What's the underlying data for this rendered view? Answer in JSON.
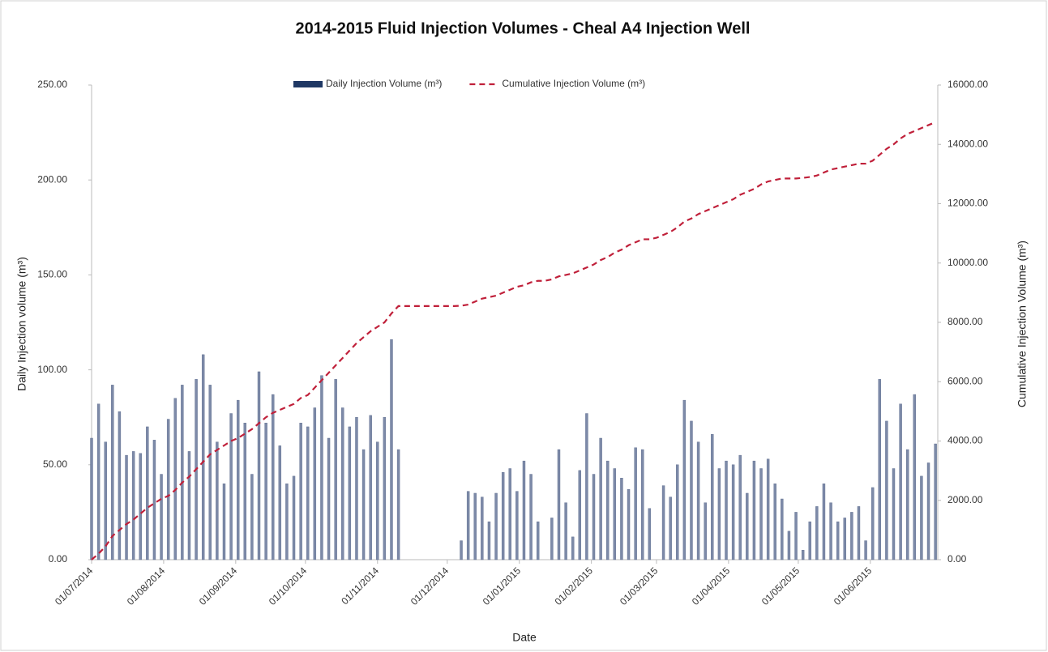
{
  "chart_data": {
    "type": "bar-line",
    "title": "2014-2015 Fluid Injection Volumes - Cheal A4 Injection Well",
    "x_label": "Date",
    "y_label": "Daily Injection volume (m³)",
    "y2_label": "Cumulative Injection Volume (m³)",
    "legend": "top",
    "grid": false,
    "x": [
      "01/07/2014",
      "04/07/2014",
      "07/07/2014",
      "10/07/2014",
      "13/07/2014",
      "16/07/2014",
      "19/07/2014",
      "22/07/2014",
      "25/07/2014",
      "28/07/2014",
      "31/07/2014",
      "03/08/2014",
      "06/08/2014",
      "09/08/2014",
      "12/08/2014",
      "15/08/2014",
      "18/08/2014",
      "21/08/2014",
      "24/08/2014",
      "27/08/2014",
      "30/08/2014",
      "02/09/2014",
      "05/09/2014",
      "08/09/2014",
      "11/09/2014",
      "14/09/2014",
      "17/09/2014",
      "20/09/2014",
      "23/09/2014",
      "26/09/2014",
      "29/09/2014",
      "02/10/2014",
      "05/10/2014",
      "08/10/2014",
      "11/10/2014",
      "14/10/2014",
      "17/10/2014",
      "20/10/2014",
      "23/10/2014",
      "26/10/2014",
      "29/10/2014",
      "01/11/2014",
      "04/11/2014",
      "07/11/2014",
      "10/11/2014",
      "13/11/2014",
      "16/11/2014",
      "19/11/2014",
      "22/11/2014",
      "25/11/2014",
      "28/11/2014",
      "01/12/2014",
      "04/12/2014",
      "07/12/2014",
      "10/12/2014",
      "13/12/2014",
      "16/12/2014",
      "19/12/2014",
      "22/12/2014",
      "25/12/2014",
      "28/12/2014",
      "31/12/2014",
      "03/01/2015",
      "06/01/2015",
      "09/01/2015",
      "12/01/2015",
      "15/01/2015",
      "18/01/2015",
      "21/01/2015",
      "24/01/2015",
      "27/01/2015",
      "30/01/2015",
      "02/02/2015",
      "05/02/2015",
      "08/02/2015",
      "11/02/2015",
      "14/02/2015",
      "17/02/2015",
      "20/02/2015",
      "23/02/2015",
      "26/02/2015",
      "01/03/2015",
      "04/03/2015",
      "07/03/2015",
      "10/03/2015",
      "13/03/2015",
      "16/03/2015",
      "19/03/2015",
      "22/03/2015",
      "25/03/2015",
      "28/03/2015",
      "31/03/2015",
      "03/04/2015",
      "06/04/2015",
      "09/04/2015",
      "12/04/2015",
      "15/04/2015",
      "18/04/2015",
      "21/04/2015",
      "24/04/2015",
      "27/04/2015",
      "30/04/2015",
      "03/05/2015",
      "06/05/2015",
      "09/05/2015",
      "12/05/2015",
      "15/05/2015",
      "18/05/2015",
      "21/05/2015",
      "24/05/2015",
      "27/05/2015",
      "30/05/2015",
      "02/06/2015",
      "05/06/2015",
      "08/06/2015",
      "11/06/2015",
      "14/06/2015",
      "17/06/2015",
      "20/06/2015",
      "23/06/2015",
      "26/06/2015",
      "29/06/2015"
    ],
    "series": [
      {
        "name": "Daily Injection Volume (m³)",
        "type": "bar",
        "axis": "y",
        "color": "#7d8aa8",
        "legend_color": "#1f3864",
        "values": [
          64,
          82,
          62,
          92,
          78,
          55,
          57,
          56,
          70,
          63,
          45,
          74,
          85,
          92,
          57,
          95,
          108,
          92,
          62,
          40,
          77,
          84,
          72,
          45,
          99,
          72,
          87,
          60,
          40,
          44,
          72,
          70,
          80,
          97,
          64,
          95,
          80,
          70,
          75,
          58,
          76,
          62,
          75,
          116,
          58,
          0,
          0,
          0,
          0,
          0,
          0,
          0,
          0,
          10,
          36,
          35,
          33,
          20,
          35,
          46,
          48,
          36,
          52,
          45,
          20,
          0,
          22,
          58,
          30,
          12,
          47,
          77,
          45,
          64,
          52,
          48,
          43,
          37,
          59,
          58,
          27,
          0,
          39,
          33,
          50,
          84,
          73,
          62,
          30,
          66,
          48,
          52,
          50,
          55,
          35,
          52,
          48,
          53,
          40,
          32,
          15,
          25,
          5,
          20,
          28,
          40,
          30,
          20,
          22,
          25,
          28,
          10,
          38,
          95,
          73,
          48,
          82,
          58,
          87,
          44,
          51,
          61
        ]
      },
      {
        "name": "Cumulative Injection Volume (m³)",
        "type": "line",
        "axis": "y2",
        "color": "#c0203a",
        "values": [
          0,
          200,
          450,
          800,
          1000,
          1200,
          1350,
          1550,
          1750,
          1900,
          2050,
          2150,
          2350,
          2600,
          2800,
          3050,
          3300,
          3550,
          3700,
          3850,
          4000,
          4100,
          4250,
          4400,
          4600,
          4800,
          4950,
          5050,
          5150,
          5250,
          5450,
          5550,
          5800,
          6050,
          6300,
          6550,
          6800,
          7050,
          7300,
          7500,
          7700,
          7850,
          8000,
          8300,
          8550,
          8550,
          8550,
          8550,
          8550,
          8550,
          8550,
          8550,
          8550,
          8560,
          8600,
          8700,
          8800,
          8850,
          8900,
          9000,
          9100,
          9200,
          9250,
          9350,
          9400,
          9400,
          9450,
          9550,
          9600,
          9650,
          9750,
          9850,
          9950,
          10100,
          10200,
          10350,
          10450,
          10600,
          10700,
          10800,
          10800,
          10850,
          10950,
          11050,
          11200,
          11400,
          11500,
          11650,
          11750,
          11850,
          11950,
          12050,
          12150,
          12300,
          12400,
          12500,
          12650,
          12750,
          12800,
          12850,
          12850,
          12850,
          12870,
          12900,
          12950,
          13050,
          13150,
          13200,
          13250,
          13300,
          13350,
          13350,
          13450,
          13650,
          13850,
          14000,
          14200,
          14350,
          14450,
          14550,
          14650,
          14750
        ]
      }
    ],
    "xlim": [
      "01/07/2014",
      "30/06/2015"
    ],
    "xticks": [
      "01/07/2014",
      "01/08/2014",
      "01/09/2014",
      "01/10/2014",
      "01/11/2014",
      "01/12/2014",
      "01/01/2015",
      "01/02/2015",
      "01/03/2015",
      "01/04/2015",
      "01/05/2015",
      "01/06/2015"
    ],
    "ylim": [
      0,
      250
    ],
    "yticks": [
      {
        "value": 0,
        "label": "0.00"
      },
      {
        "value": 50,
        "label": "50.00"
      },
      {
        "value": 100,
        "label": "100.00"
      },
      {
        "value": 150,
        "label": "150.00"
      },
      {
        "value": 200,
        "label": "200.00"
      },
      {
        "value": 250,
        "label": "250.00"
      }
    ],
    "y2lim": [
      0,
      16000
    ],
    "y2ticks": [
      {
        "value": 0,
        "label": "0.00"
      },
      {
        "value": 2000,
        "label": "2000.00"
      },
      {
        "value": 4000,
        "label": "4000.00"
      },
      {
        "value": 6000,
        "label": "6000.00"
      },
      {
        "value": 8000,
        "label": "8000.00"
      },
      {
        "value": 10000,
        "label": "10000.00"
      },
      {
        "value": 12000,
        "label": "12000.00"
      },
      {
        "value": 14000,
        "label": "14000.00"
      },
      {
        "value": 16000,
        "label": "16000.00"
      }
    ]
  }
}
